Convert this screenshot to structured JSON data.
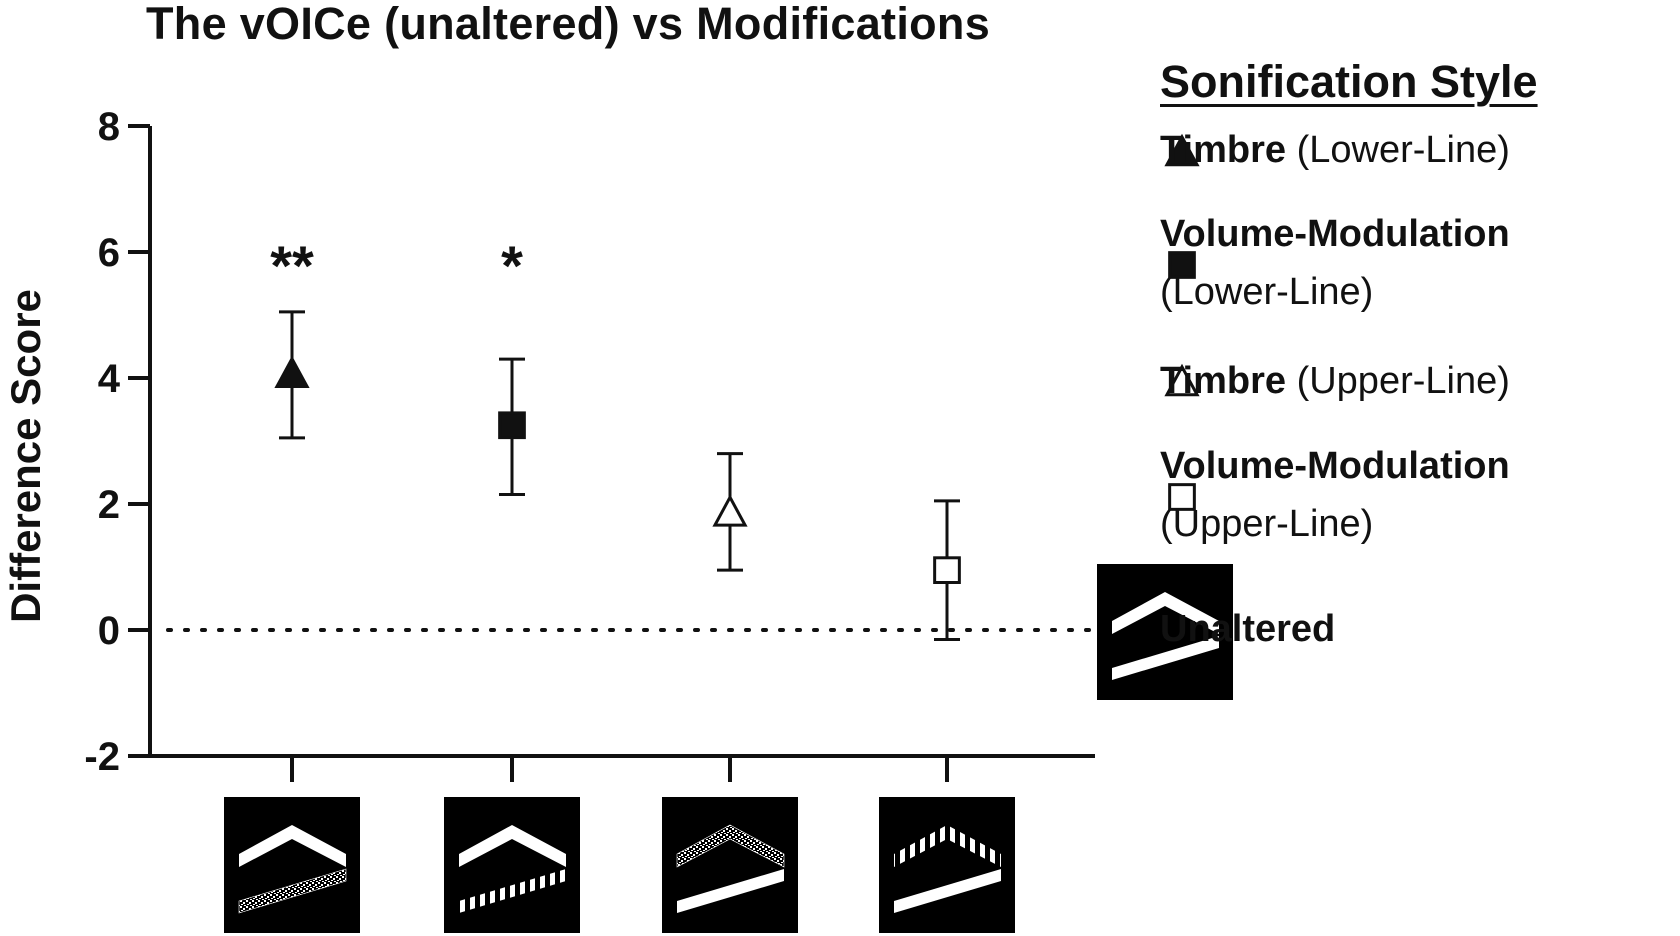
{
  "chart_data": {
    "type": "scatter",
    "title": "The vOICe (unaltered) vs Modifications",
    "ylabel": "Difference Score",
    "ylim": [
      -2,
      8
    ],
    "yticks": [
      "8",
      "6",
      "4",
      "2",
      "0",
      "-2"
    ],
    "ytick_values": [
      8,
      6,
      4,
      2,
      0,
      -2
    ],
    "reference_line": 0,
    "categories": [
      "Timbre (Lower-Line)",
      "Volume-Modulation (Lower-Line)",
      "Timbre (Upper-Line)",
      "Volume-Modulation (Upper-Line)"
    ],
    "series": [
      {
        "name": "Timbre (Lower-Line)",
        "marker": "triangle-filled",
        "mean": 4.05,
        "err_low": 3.05,
        "err_high": 5.05,
        "significance": "**"
      },
      {
        "name": "Volume-Modulation (Lower-Line)",
        "marker": "square-filled",
        "mean": 3.25,
        "err_low": 2.15,
        "err_high": 4.3,
        "significance": "*"
      },
      {
        "name": "Timbre (Upper-Line)",
        "marker": "triangle-open",
        "mean": 1.85,
        "err_low": 0.95,
        "err_high": 2.8,
        "significance": ""
      },
      {
        "name": "Volume-Modulation (Upper-Line)",
        "marker": "square-open",
        "mean": 0.95,
        "err_low": -0.15,
        "err_high": 2.05,
        "significance": ""
      }
    ],
    "legend": {
      "heading": "Sonification Style",
      "placement": "right",
      "items": [
        {
          "bold": "Timbre",
          "rest": " (Lower-Line)",
          "marker": "triangle-filled"
        },
        {
          "bold": "Volume-Modulation",
          "rest": "(Lower-Line)",
          "marker": "square-filled"
        },
        {
          "bold": "Timbre",
          "rest": " (Upper-Line)",
          "marker": "triangle-open"
        },
        {
          "bold": "Volume-Modulation",
          "rest": "(Upper-Line)",
          "marker": "square-open"
        },
        {
          "bold": "Unaltered",
          "rest": "",
          "marker": "unaltered-image"
        }
      ]
    },
    "grid": false
  },
  "colors": {
    "ink": "#111111",
    "background": "#ffffff",
    "thumbnail_bg": "#000000",
    "thumbnail_line": "#ffffff"
  }
}
